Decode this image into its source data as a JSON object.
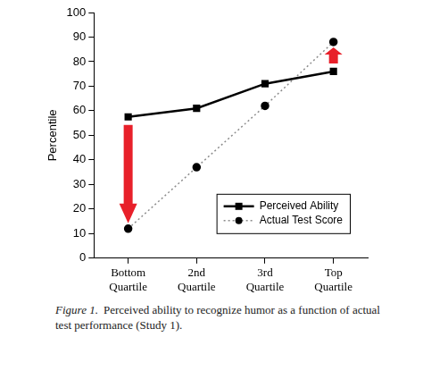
{
  "chart_data": {
    "type": "line",
    "y_label": "Percentile",
    "categories": [
      "Bottom Quartile",
      "2nd Quartile",
      "3rd Quartile",
      "Top Quartile"
    ],
    "series": [
      {
        "name": "Perceived Ability",
        "color": "#000000",
        "marker": "square",
        "line_style": "solid",
        "values": [
          57.5,
          61,
          71,
          76
        ]
      },
      {
        "name": "Actual Test Score",
        "color": "#8c8c8c",
        "marker": "circle",
        "line_style": "dotted",
        "values": [
          12,
          37,
          62,
          88
        ]
      }
    ],
    "ylim": [
      0,
      100
    ],
    "yticks": [
      0,
      10,
      20,
      30,
      40,
      50,
      60,
      70,
      80,
      90,
      100
    ],
    "grid": false,
    "legend": "lower right",
    "figure_label": "Figure 1.",
    "caption": "Perceived ability to recognize humor as a function of actual test performance (Study 1)."
  }
}
